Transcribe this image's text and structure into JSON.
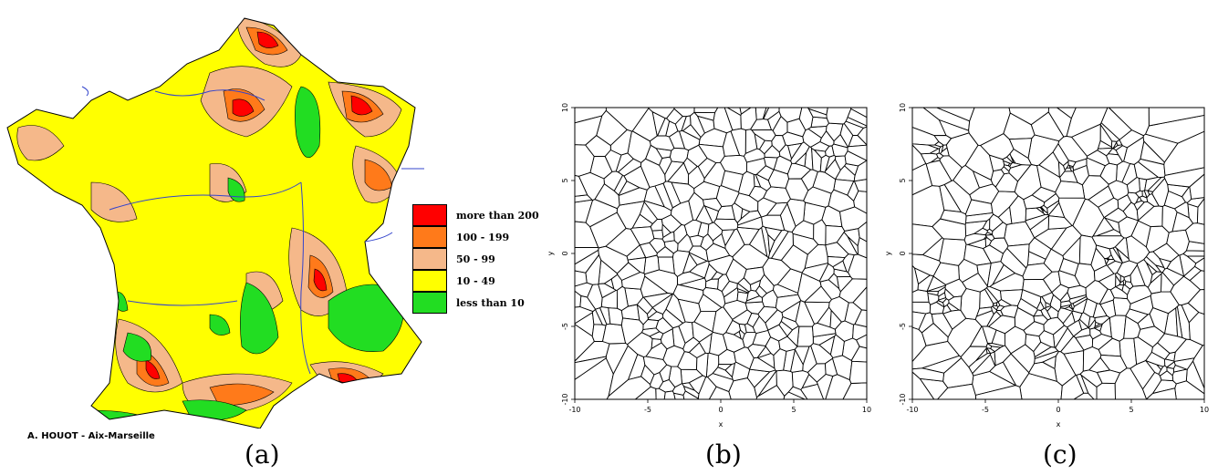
{
  "panels": {
    "a": {
      "caption": "(a)",
      "credit": "A. HOUOT - Aix-Marseille",
      "legend": [
        {
          "label": "more than 200",
          "color": "#ff0000"
        },
        {
          "label": "100 - 199",
          "color": "#ff7a1a"
        },
        {
          "label": "50 - 99",
          "color": "#f5b88a"
        },
        {
          "label": "10 - 49",
          "color": "#ffff00"
        },
        {
          "label": "less than 10",
          "color": "#22dd22"
        }
      ]
    },
    "b": {
      "caption": "(b)",
      "xlabel": "x",
      "ylabel": "y",
      "xticks": [
        "-10",
        "-5",
        "0",
        "5",
        "10"
      ],
      "yticks": [
        "-10",
        "-5",
        "0",
        "5",
        "10"
      ]
    },
    "c": {
      "caption": "(c)",
      "xlabel": "x",
      "ylabel": "y",
      "xticks": [
        "-10",
        "-5",
        "0",
        "5",
        "10"
      ],
      "yticks": [
        "-10",
        "-5",
        "0",
        "5",
        "10"
      ]
    }
  },
  "colors": {
    "outline": "#000000",
    "rivers": "#3344cc"
  }
}
